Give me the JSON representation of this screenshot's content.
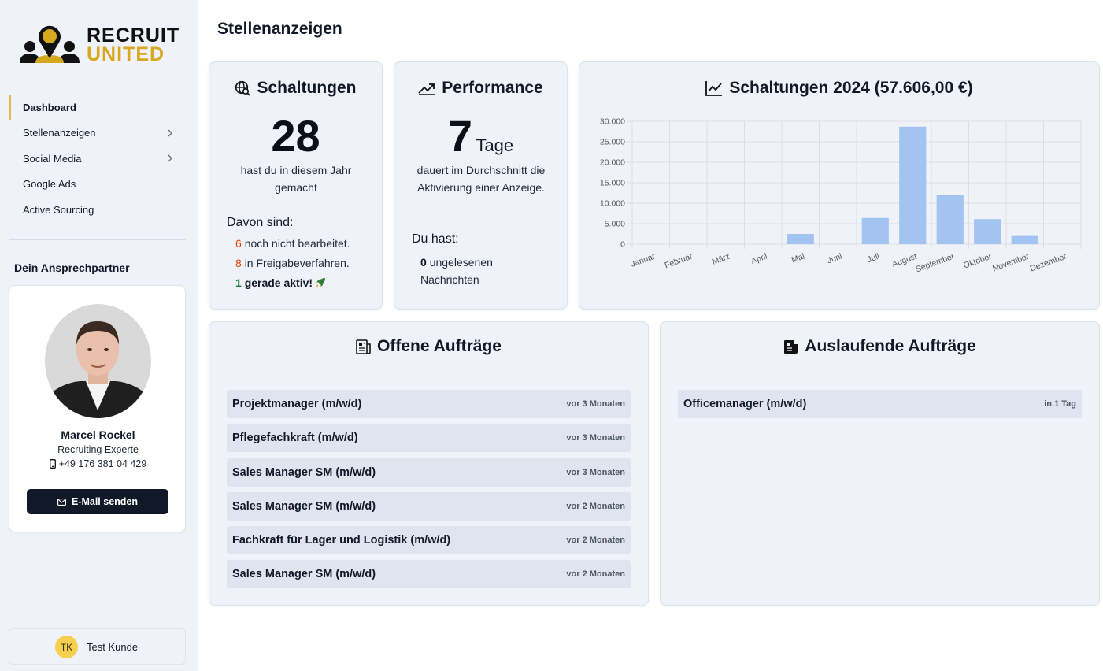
{
  "brand": {
    "line1": "RECRUIT",
    "line2": "UNITED"
  },
  "nav": {
    "items": [
      {
        "label": "Dashboard",
        "active": true,
        "has_children": false
      },
      {
        "label": "Stellenanzeigen",
        "active": false,
        "has_children": true
      },
      {
        "label": "Social Media",
        "active": false,
        "has_children": true
      },
      {
        "label": "Google Ads",
        "active": false,
        "has_children": false
      },
      {
        "label": "Active Sourcing",
        "active": false,
        "has_children": false
      }
    ]
  },
  "contact": {
    "heading": "Dein Ansprechpartner",
    "name": "Marcel Rockel",
    "role": "Recruiting Experte",
    "phone": "+49 176 381 04 429",
    "email_button": "E-Mail senden"
  },
  "user": {
    "initials": "TK",
    "name": "Test Kunde"
  },
  "page": {
    "title": "Stellenanzeigen"
  },
  "schaltungen": {
    "title": "Schaltungen",
    "count": "28",
    "subtitle": "hast du in diesem Jahr gemacht",
    "breakdown_heading": "Davon sind:",
    "breakdown": [
      {
        "num": "6",
        "text": "noch nicht bearbeitet.",
        "color": "#d9480f"
      },
      {
        "num": "8",
        "text": "in Freigabeverfahren.",
        "color": "#d9480f"
      },
      {
        "num": "1",
        "text": "gerade aktiv!",
        "color": "#15803d"
      }
    ]
  },
  "performance": {
    "title": "Performance",
    "value": "7",
    "unit": "Tage",
    "subtitle": "dauert im Durchschnitt die Aktivierung einer Anzeige.",
    "du_hast": "Du hast:",
    "unread_count": "0",
    "unread_text": "ungelesenen Nachrichten"
  },
  "chart_card": {
    "title": "Schaltungen 2024 (57.606,00 €)"
  },
  "chart_data": {
    "type": "bar",
    "categories": [
      "Januar",
      "Februar",
      "März",
      "April",
      "Mai",
      "Juni",
      "Juli",
      "August",
      "September",
      "Oktober",
      "November",
      "Dezember"
    ],
    "values": [
      0,
      0,
      0,
      0,
      2500,
      0,
      6400,
      28700,
      12000,
      6100,
      2000,
      0
    ],
    "ylim": [
      0,
      30000
    ],
    "yticks": [
      0,
      5000,
      10000,
      15000,
      20000,
      25000,
      30000
    ],
    "ytick_labels": [
      "0",
      "5.000",
      "10.000",
      "15.000",
      "20.000",
      "25.000",
      "30.000"
    ],
    "bar_color": "#a3c4f0",
    "grid": true
  },
  "open_orders": {
    "title": "Offene Aufträge",
    "items": [
      {
        "title": "Projektmanager (m/w/d)",
        "time": "vor 3 Monaten"
      },
      {
        "title": "Pflegefachkraft (m/w/d)",
        "time": "vor 3 Monaten"
      },
      {
        "title": "Sales Manager SM (m/w/d)",
        "time": "vor 3 Monaten"
      },
      {
        "title": "Sales Manager SM (m/w/d)",
        "time": "vor 2 Monaten"
      },
      {
        "title": "Fachkraft für Lager und Logistik (m/w/d)",
        "time": "vor 2 Monaten"
      },
      {
        "title": "Sales Manager SM (m/w/d)",
        "time": "vor 2 Monaten"
      }
    ]
  },
  "expiring_orders": {
    "title": "Auslaufende Aufträge",
    "items": [
      {
        "title": "Officemanager (m/w/d)",
        "time": "in 1 Tag"
      }
    ]
  },
  "colors": {
    "accent": "#e8b64a",
    "brand_gold": "#d6a81e",
    "dark": "#111827"
  }
}
